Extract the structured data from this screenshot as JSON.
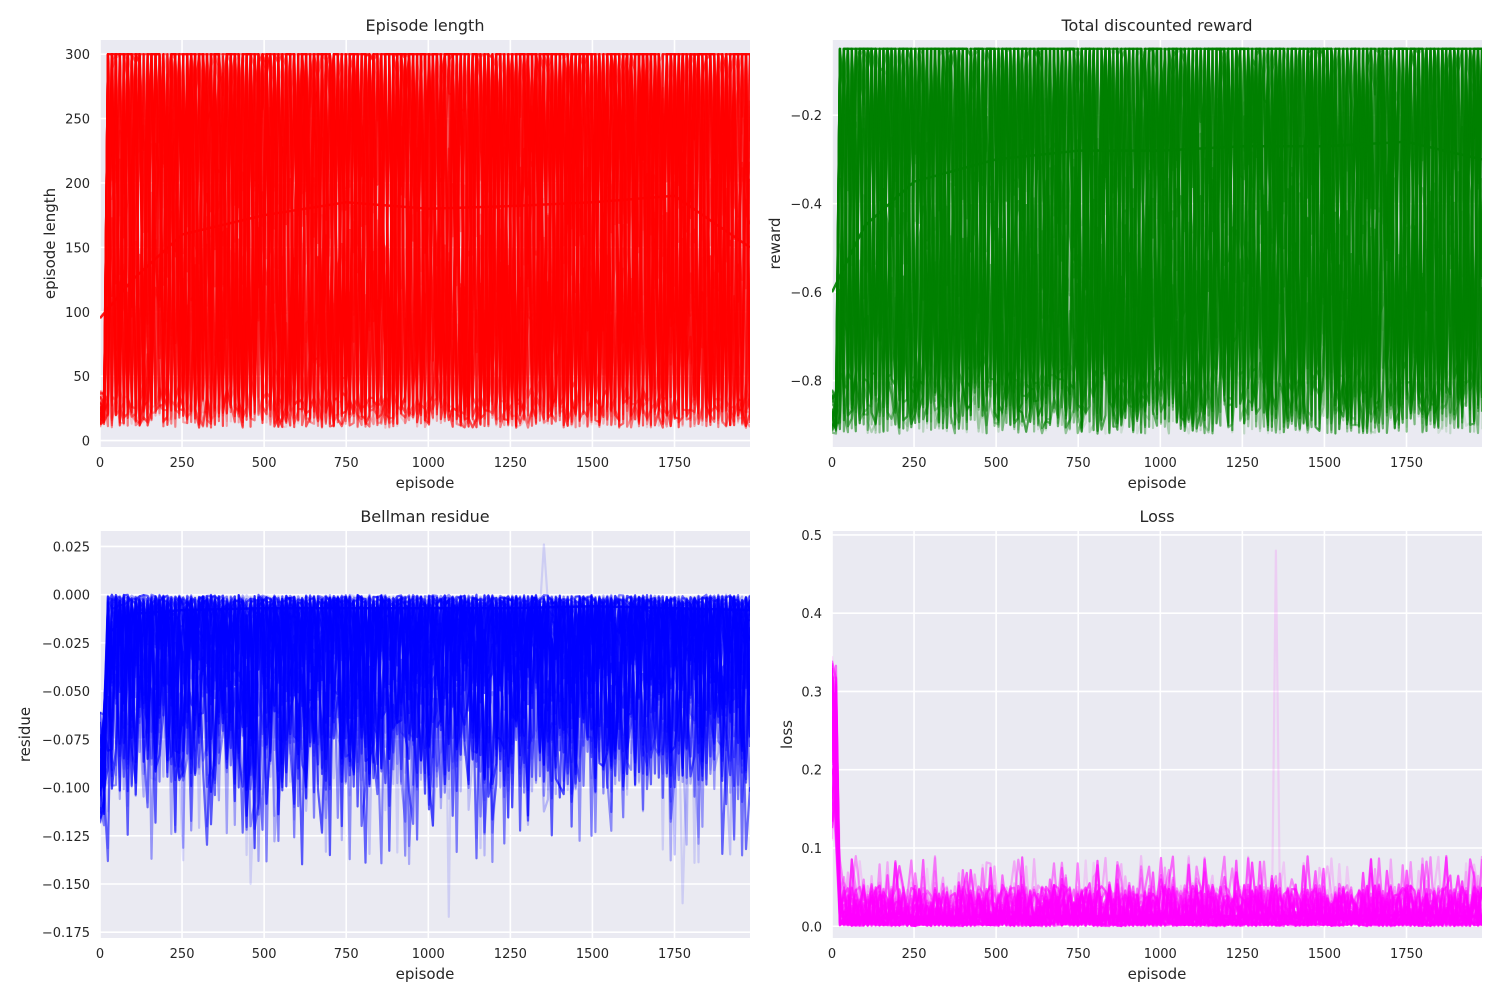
{
  "chart_data": [
    {
      "type": "line",
      "title": "Episode length",
      "xlabel": "episode",
      "ylabel": "episode length",
      "xlim": [
        0,
        1980
      ],
      "ylim": [
        -5,
        311
      ],
      "xticks": [
        0,
        250,
        500,
        750,
        1000,
        1250,
        1500,
        1750
      ],
      "yticks": [
        0,
        50,
        100,
        150,
        200,
        250,
        300
      ],
      "grid": true,
      "color": "#ff0000",
      "overlaid_runs": 40,
      "value_range": [
        10,
        300
      ],
      "series": [
        {
          "x": [
            0,
            100,
            250,
            500,
            750,
            1000,
            1250,
            1500,
            1750,
            1980
          ],
          "values": [
            95,
            125,
            160,
            175,
            185,
            180,
            182,
            185,
            190,
            150
          ]
        }
      ]
    },
    {
      "type": "line",
      "title": "Total discounted reward",
      "xlabel": "episode",
      "ylabel": "reward",
      "xlim": [
        0,
        1980
      ],
      "ylim": [
        -0.95,
        -0.03
      ],
      "xticks": [
        0,
        250,
        500,
        750,
        1000,
        1250,
        1500,
        1750
      ],
      "yticks": [
        -0.8,
        -0.6,
        -0.4,
        -0.2
      ],
      "grid": true,
      "color": "#008000",
      "overlaid_runs": 40,
      "value_range": [
        -0.92,
        -0.05
      ],
      "series": [
        {
          "x": [
            0,
            100,
            250,
            500,
            750,
            1000,
            1250,
            1500,
            1750,
            1980
          ],
          "values": [
            -0.6,
            -0.45,
            -0.35,
            -0.3,
            -0.28,
            -0.28,
            -0.27,
            -0.27,
            -0.26,
            -0.3
          ]
        }
      ]
    },
    {
      "type": "line",
      "title": "Bellman residue",
      "xlabel": "episode",
      "ylabel": "residue",
      "xlim": [
        0,
        1980
      ],
      "ylim": [
        -0.178,
        0.033
      ],
      "xticks": [
        0,
        250,
        500,
        750,
        1000,
        1250,
        1500,
        1750
      ],
      "yticks": [
        0.025,
        0.0,
        -0.025,
        -0.05,
        -0.075,
        -0.1,
        -0.125,
        -0.15,
        -0.175
      ],
      "ytick_labels": [
        "0.025",
        "0.000",
        "−0.025",
        "−0.050",
        "−0.075",
        "−0.100",
        "−0.125",
        "−0.150",
        "−0.175"
      ],
      "grid": true,
      "color": "#0000ff",
      "overlaid_runs": 40,
      "value_range": [
        -0.168,
        0.026
      ],
      "peaks": [
        {
          "x": 1355,
          "y": 0.026
        },
        {
          "x": 1060,
          "y": -0.167
        },
        {
          "x": 1780,
          "y": -0.16
        },
        {
          "x": 460,
          "y": -0.15
        }
      ],
      "series": [
        {
          "x": [
            0,
            25,
            100,
            250,
            500,
            750,
            1000,
            1250,
            1500,
            1750,
            1980
          ],
          "values": [
            -0.1,
            -0.02,
            -0.01,
            -0.008,
            -0.007,
            -0.007,
            -0.007,
            -0.007,
            -0.006,
            -0.007,
            -0.008
          ]
        }
      ]
    },
    {
      "type": "line",
      "title": "Loss",
      "xlabel": "episode",
      "ylabel": "loss",
      "xlim": [
        0,
        1980
      ],
      "ylim": [
        -0.015,
        0.505
      ],
      "xticks": [
        0,
        250,
        500,
        750,
        1000,
        1250,
        1500,
        1750
      ],
      "yticks": [
        0.0,
        0.1,
        0.2,
        0.3,
        0.4,
        0.5
      ],
      "ytick_labels": [
        "0.0",
        "0.1",
        "0.2",
        "0.3",
        "0.4",
        "0.5"
      ],
      "grid": true,
      "color": "#ff00ff",
      "overlaid_runs": 40,
      "value_range": [
        0.0,
        0.48
      ],
      "peaks": [
        {
          "x": 1355,
          "y": 0.48
        },
        {
          "x": 0,
          "y": 0.345
        }
      ],
      "series": [
        {
          "x": [
            0,
            25,
            100,
            250,
            500,
            750,
            1000,
            1250,
            1500,
            1750,
            1980
          ],
          "values": [
            0.33,
            0.02,
            0.01,
            0.012,
            0.012,
            0.013,
            0.012,
            0.013,
            0.013,
            0.014,
            0.013
          ]
        }
      ]
    }
  ]
}
